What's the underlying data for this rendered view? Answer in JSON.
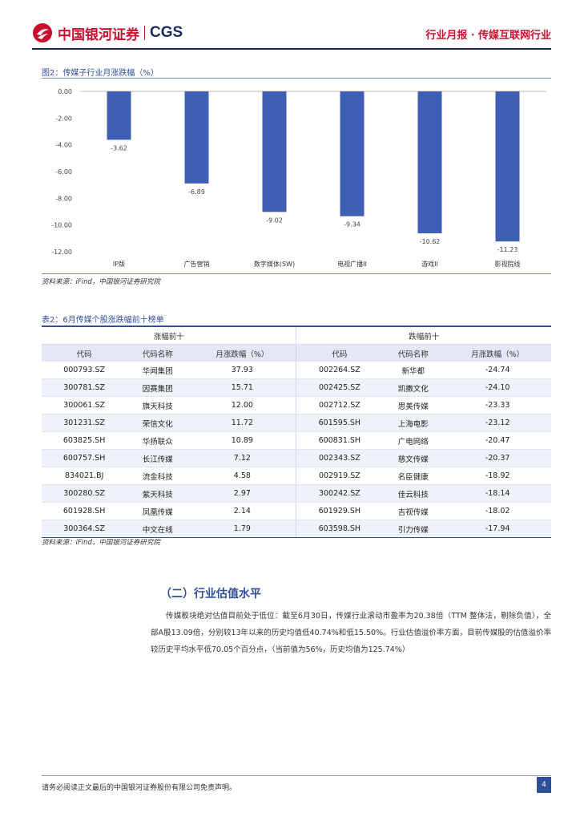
{
  "header": {
    "logo_cn": "中国银河证券",
    "logo_en": "CGS",
    "report_type": "行业月报 · 传媒互联网行业"
  },
  "figure": {
    "title": "图2：传媒子行业月涨跌幅（%）",
    "source": "资料来源：iFind，中国银河证券研究院"
  },
  "chart_data": {
    "type": "bar",
    "categories": [
      "IP版",
      "广告营销",
      "数字媒体(SW)",
      "电视广播II",
      "游戏II",
      "影视院线"
    ],
    "values": [
      -3.62,
      -6.89,
      -9.02,
      -9.34,
      -10.62,
      -11.23
    ],
    "value_labels": [
      "-3.62",
      "-6.89",
      "-9.02",
      "-9.34",
      "-10.62",
      "-11.23"
    ],
    "y_ticks": [
      "0.00",
      "-2.00",
      "-4.00",
      "-6.00",
      "-8.00",
      "-10.00",
      "-12.00"
    ],
    "ylim": [
      -12,
      0
    ],
    "bar_color": "#3f5fb4",
    "grid": false,
    "legend": "none"
  },
  "table": {
    "title": "表2：6月传媒个股涨跌幅前十榜单",
    "group_up": "涨幅前十",
    "group_down": "跌幅前十",
    "headers": [
      "代码",
      "代码名称",
      "月涨跌幅（%）",
      "代码",
      "代码名称",
      "月涨跌幅（%）"
    ],
    "rows": [
      [
        "000793.SZ",
        "华闻集团",
        "37.93",
        "002264.SZ",
        "新华都",
        "-24.74"
      ],
      [
        "300781.SZ",
        "因赛集团",
        "15.71",
        "002425.SZ",
        "凯撒文化",
        "-24.10"
      ],
      [
        "300061.SZ",
        "旗天科技",
        "12.00",
        "002712.SZ",
        "思美传媒",
        "-23.33"
      ],
      [
        "301231.SZ",
        "荣信文化",
        "11.72",
        "601595.SH",
        "上海电影",
        "-23.12"
      ],
      [
        "603825.SH",
        "华扬联众",
        "10.89",
        "600831.SH",
        "广电网络",
        "-20.47"
      ],
      [
        "600757.SH",
        "长江传媒",
        "7.12",
        "002343.SZ",
        "慈文传媒",
        "-20.37"
      ],
      [
        "834021.BJ",
        "流金科技",
        "4.58",
        "002919.SZ",
        "名臣健康",
        "-18.92"
      ],
      [
        "300280.SZ",
        "紫天科技",
        "2.97",
        "300242.SZ",
        "佳云科技",
        "-18.14"
      ],
      [
        "601928.SH",
        "凤凰传媒",
        "2.14",
        "601929.SH",
        "吉视传媒",
        "-18.02"
      ],
      [
        "300364.SZ",
        "中文在线",
        "1.79",
        "603598.SH",
        "引力传媒",
        "-17.94"
      ]
    ],
    "source": "资料来源：iFind，中国银河证券研究院"
  },
  "section": {
    "title": "（二）行业估值水平",
    "paragraph": "传媒板块绝对估值目前处于低位：截至6月30日，传媒行业滚动市盈率为20.38倍（TTM 整体法，剔除负值），全部A股13.09倍，分别较13年以来的历史均值低40.74%和低15.50%。行业估值溢价率方面，目前传媒股的估值溢价率较历史平均水平低70.05个百分点，（当前值为56%，历史均值为125.74%）"
  },
  "footer": {
    "disclaimer": "请务必阅读正文最后的中国银河证券股份有限公司免责声明。",
    "page": "4"
  }
}
